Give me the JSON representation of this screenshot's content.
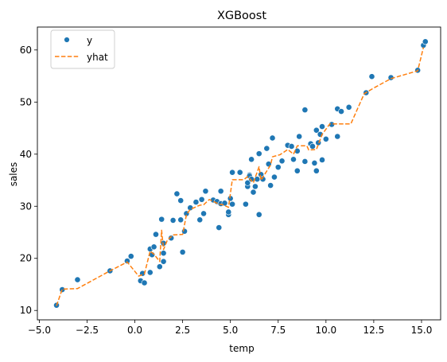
{
  "chart_data": {
    "type": "scatter",
    "title": "XGBoost",
    "xlabel": "temp",
    "ylabel": "sales",
    "xlim": [
      -5.1,
      16.0
    ],
    "ylim": [
      8.2,
      64.4
    ],
    "xticks": [
      -5.0,
      -2.5,
      0.0,
      2.5,
      5.0,
      7.5,
      10.0,
      12.5,
      15.0
    ],
    "xtick_labels": [
      "−5.0",
      "−2.5",
      "0.0",
      "2.5",
      "5.0",
      "7.5",
      "10.0",
      "12.5",
      "15.0"
    ],
    "yticks": [
      10,
      20,
      30,
      40,
      50,
      60
    ],
    "ytick_labels": [
      "10",
      "20",
      "30",
      "40",
      "50",
      "60"
    ],
    "grid": false,
    "legend_position": "top-left",
    "series": [
      {
        "name": "y",
        "kind": "scatter",
        "color": "#1f77b4",
        "points": [
          [
            -4.1,
            11.0
          ],
          [
            -3.8,
            14.0
          ],
          [
            -3.0,
            15.9
          ],
          [
            -1.3,
            17.6
          ],
          [
            -0.4,
            19.5
          ],
          [
            -0.2,
            20.4
          ],
          [
            0.3,
            15.7
          ],
          [
            0.4,
            17.1
          ],
          [
            0.5,
            15.3
          ],
          [
            0.8,
            17.3
          ],
          [
            0.8,
            21.8
          ],
          [
            0.9,
            20.7
          ],
          [
            1.0,
            22.2
          ],
          [
            1.1,
            24.6
          ],
          [
            1.3,
            18.4
          ],
          [
            1.4,
            27.5
          ],
          [
            1.5,
            21.0
          ],
          [
            1.5,
            19.4
          ],
          [
            1.5,
            22.9
          ],
          [
            1.9,
            23.9
          ],
          [
            2.0,
            27.3
          ],
          [
            2.2,
            32.4
          ],
          [
            2.4,
            31.1
          ],
          [
            2.4,
            27.4
          ],
          [
            2.5,
            21.2
          ],
          [
            2.6,
            25.2
          ],
          [
            2.7,
            28.6
          ],
          [
            2.9,
            29.7
          ],
          [
            3.2,
            30.8
          ],
          [
            3.4,
            27.4
          ],
          [
            3.5,
            31.3
          ],
          [
            3.6,
            28.6
          ],
          [
            3.7,
            32.9
          ],
          [
            4.1,
            31.2
          ],
          [
            4.3,
            30.9
          ],
          [
            4.4,
            25.9
          ],
          [
            4.5,
            30.5
          ],
          [
            4.5,
            32.9
          ],
          [
            4.7,
            30.6
          ],
          [
            4.9,
            28.4
          ],
          [
            4.9,
            28.9
          ],
          [
            5.0,
            31.5
          ],
          [
            5.1,
            30.4
          ],
          [
            5.1,
            36.5
          ],
          [
            5.5,
            36.5
          ],
          [
            5.8,
            30.4
          ],
          [
            5.9,
            33.8
          ],
          [
            5.9,
            34.5
          ],
          [
            6.0,
            36.0
          ],
          [
            6.0,
            35.8
          ],
          [
            6.1,
            39.0
          ],
          [
            6.1,
            35.2
          ],
          [
            6.2,
            32.7
          ],
          [
            6.3,
            33.8
          ],
          [
            6.4,
            35.2
          ],
          [
            6.5,
            28.4
          ],
          [
            6.5,
            40.1
          ],
          [
            6.6,
            36.1
          ],
          [
            6.7,
            35.2
          ],
          [
            6.9,
            41.1
          ],
          [
            7.0,
            38.1
          ],
          [
            7.1,
            34.0
          ],
          [
            7.2,
            43.1
          ],
          [
            7.3,
            35.6
          ],
          [
            7.5,
            37.5
          ],
          [
            7.7,
            38.7
          ],
          [
            8.0,
            41.7
          ],
          [
            8.2,
            41.5
          ],
          [
            8.3,
            39.0
          ],
          [
            8.5,
            36.8
          ],
          [
            8.5,
            40.6
          ],
          [
            8.6,
            43.4
          ],
          [
            8.9,
            48.5
          ],
          [
            8.9,
            38.6
          ],
          [
            9.2,
            42.0
          ],
          [
            9.3,
            41.5
          ],
          [
            9.4,
            38.3
          ],
          [
            9.5,
            36.8
          ],
          [
            9.5,
            44.6
          ],
          [
            9.6,
            42.2
          ],
          [
            9.7,
            43.8
          ],
          [
            9.8,
            45.3
          ],
          [
            9.8,
            38.9
          ],
          [
            10.0,
            42.9
          ],
          [
            10.3,
            45.7
          ],
          [
            10.6,
            43.4
          ],
          [
            10.6,
            48.7
          ],
          [
            10.8,
            48.2
          ],
          [
            11.2,
            49.0
          ],
          [
            12.1,
            51.8
          ],
          [
            12.4,
            54.9
          ],
          [
            13.4,
            54.7
          ],
          [
            14.8,
            56.1
          ],
          [
            15.1,
            60.9
          ],
          [
            15.2,
            61.6
          ]
        ]
      },
      {
        "name": "yhat",
        "kind": "line",
        "dash": "dashed",
        "color": "#ff7f0e",
        "points": [
          [
            -4.1,
            10.9
          ],
          [
            -3.8,
            14.1
          ],
          [
            -3.0,
            14.2
          ],
          [
            -1.3,
            17.6
          ],
          [
            -0.4,
            19.3
          ],
          [
            0.2,
            16.6
          ],
          [
            0.5,
            17.0
          ],
          [
            0.8,
            21.4
          ],
          [
            1.0,
            20.8
          ],
          [
            1.3,
            19.4
          ],
          [
            1.4,
            25.4
          ],
          [
            1.5,
            21.7
          ],
          [
            1.7,
            23.5
          ],
          [
            2.0,
            24.5
          ],
          [
            2.5,
            24.6
          ],
          [
            2.7,
            28.4
          ],
          [
            2.9,
            29.4
          ],
          [
            3.4,
            30.2
          ],
          [
            3.6,
            30.3
          ],
          [
            3.9,
            31.3
          ],
          [
            4.4,
            30.4
          ],
          [
            4.6,
            30.3
          ],
          [
            4.9,
            29.8
          ],
          [
            5.1,
            35.1
          ],
          [
            5.7,
            35.1
          ],
          [
            5.9,
            35.7
          ],
          [
            6.2,
            34.5
          ],
          [
            6.5,
            37.6
          ],
          [
            6.6,
            35.0
          ],
          [
            7.1,
            37.9
          ],
          [
            7.2,
            39.5
          ],
          [
            7.6,
            39.9
          ],
          [
            8.0,
            40.9
          ],
          [
            8.3,
            40.0
          ],
          [
            8.5,
            41.6
          ],
          [
            9.0,
            41.6
          ],
          [
            9.1,
            40.8
          ],
          [
            9.5,
            40.9
          ],
          [
            9.8,
            43.8
          ],
          [
            10.2,
            45.8
          ],
          [
            11.3,
            45.8
          ],
          [
            12.0,
            51.6
          ],
          [
            12.5,
            52.7
          ],
          [
            13.4,
            54.5
          ],
          [
            14.8,
            56.0
          ],
          [
            15.1,
            60.5
          ]
        ]
      }
    ],
    "legend": [
      {
        "label": "y",
        "marker": "circle",
        "color": "#1f77b4"
      },
      {
        "label": "yhat",
        "marker": "dashed-line",
        "color": "#ff7f0e"
      }
    ]
  }
}
